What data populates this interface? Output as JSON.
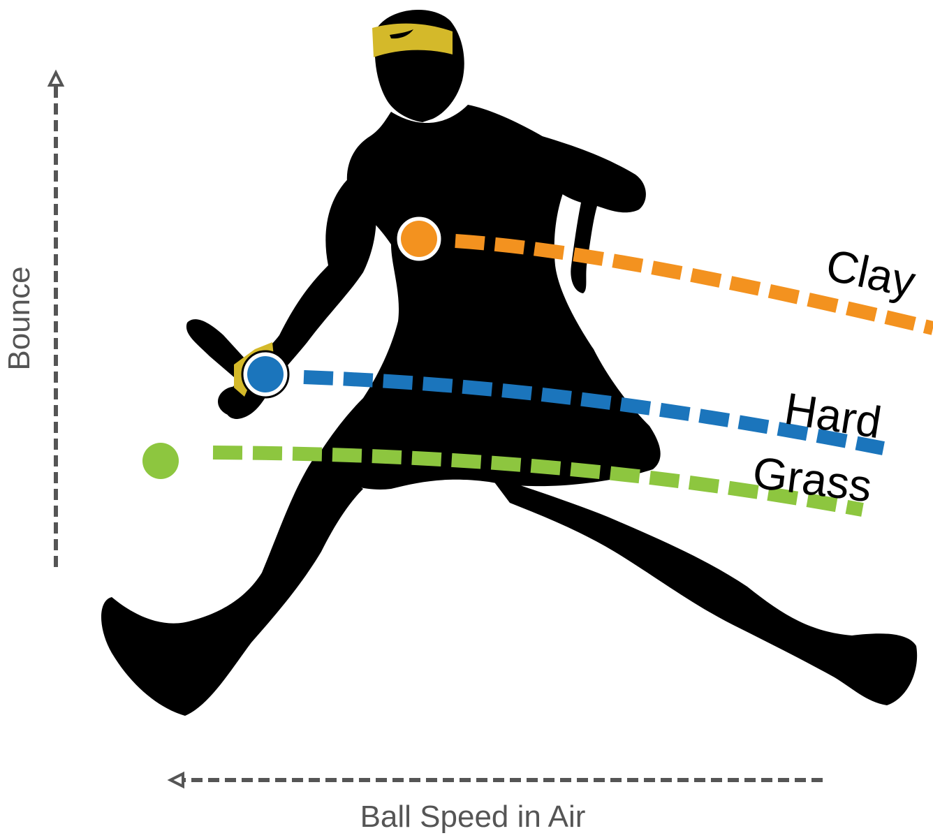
{
  "axes": {
    "y_label": "Bounce",
    "x_label": "Ball Speed in Air"
  },
  "surfaces": [
    {
      "label": "Clay",
      "color": "#f3921f"
    },
    {
      "label": "Hard",
      "color": "#1b75bc"
    },
    {
      "label": "Grass",
      "color": "#8dc63f"
    }
  ],
  "colors": {
    "silhouette": "#000000",
    "headband": "#d4b92a",
    "wristband": "#d4b92a",
    "arrows": "#555555"
  },
  "icons": {
    "player": "tennis-player-silhouette",
    "balls": "tennis-ball"
  }
}
